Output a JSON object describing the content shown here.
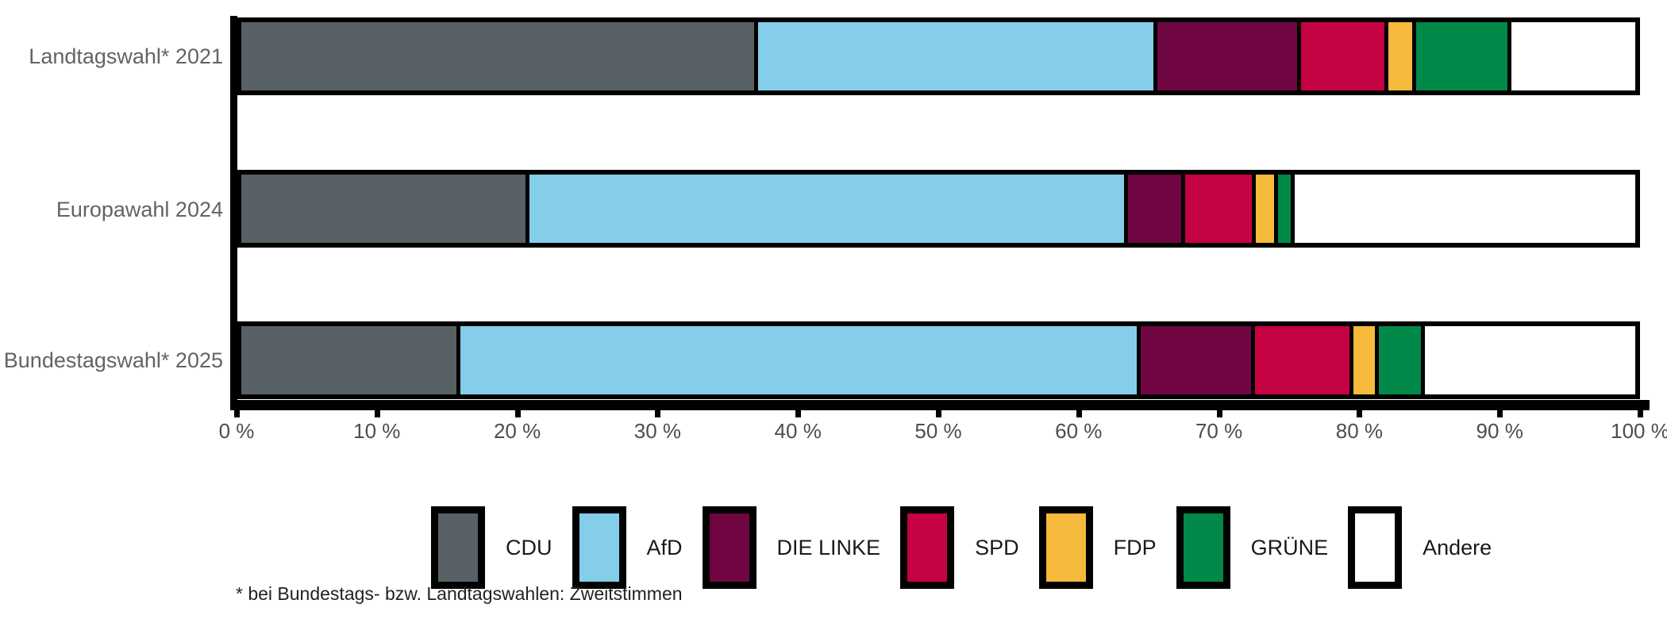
{
  "chart_data": {
    "type": "bar",
    "variant": "horizontal-stacked",
    "title": "",
    "categories": [
      "Landtagswahl* 2021",
      "Europawahl 2024",
      "Bundestagswahl* 2025"
    ],
    "series": [
      {
        "name": "CDU",
        "color": "#566065",
        "values": [
          37.1,
          20.7,
          15.7
        ]
      },
      {
        "name": "AfD",
        "color": "#85CEEA",
        "values": [
          28.6,
          42.9,
          48.8
        ]
      },
      {
        "name": "DIE LINKE",
        "color": "#6F0642",
        "values": [
          10.3,
          4.1,
          8.2
        ]
      },
      {
        "name": "SPD",
        "color": "#C50242",
        "values": [
          6.3,
          5.1,
          7.1
        ]
      },
      {
        "name": "FDP",
        "color": "#F5B93C",
        "values": [
          2.0,
          1.6,
          1.8
        ]
      },
      {
        "name": "GRÜNE",
        "color": "#008948",
        "values": [
          6.8,
          1.2,
          3.3
        ]
      },
      {
        "name": "Andere",
        "color": "#FFFFFF",
        "values": [
          8.9,
          24.4,
          15.1
        ]
      }
    ],
    "x_tick_labels": [
      "0 %",
      "10 %",
      "20 %",
      "30 %",
      "40 %",
      "50 %",
      "60 %",
      "70 %",
      "80 %",
      "90 %",
      "100 %"
    ],
    "xlim": [
      0,
      100
    ],
    "grid": false,
    "legend_position": "bottom",
    "bar_border_color": "#000000",
    "axis_color": "#000000",
    "footnote": "* bei Bundestags- bzw. Landtagswahlen: Zweitstimmen"
  }
}
